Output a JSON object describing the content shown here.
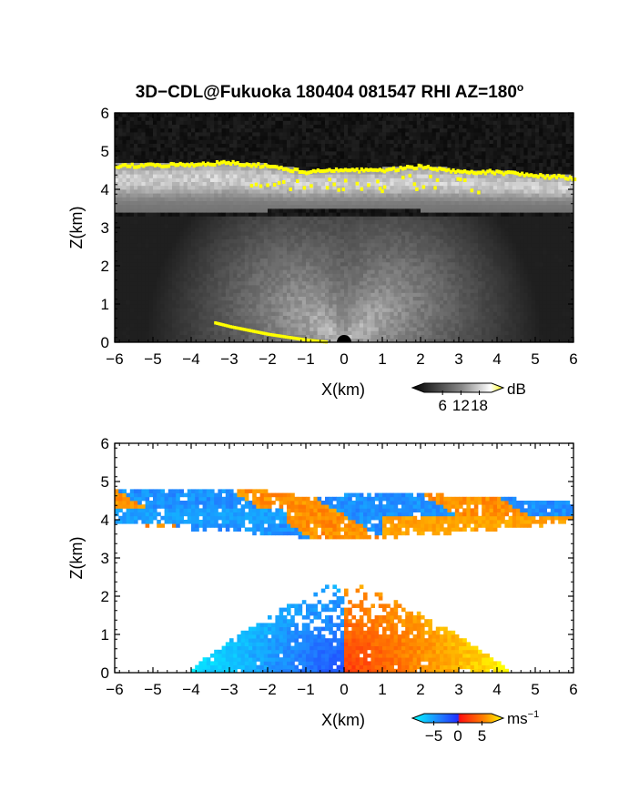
{
  "title": "3D−CDL@Fukuoka 180404 081547 RHI AZ=180",
  "title_superscript": "o",
  "chart_data": [
    {
      "type": "heatmap",
      "name": "backscatter",
      "xlabel": "X(km)",
      "ylabel": "Z(km)",
      "xlim": [
        -6,
        6
      ],
      "ylim": [
        0,
        6
      ],
      "x_ticks": [
        "−6",
        "−5",
        "−4",
        "−3",
        "−2",
        "−1",
        "0",
        "1",
        "2",
        "3",
        "4",
        "5",
        "6"
      ],
      "y_ticks": [
        "0",
        "1",
        "2",
        "3",
        "4",
        "5",
        "6"
      ],
      "colorbar": {
        "unit": "dB",
        "ticks": [
          "6",
          "12",
          "18"
        ],
        "tick_values": [
          6,
          12,
          18
        ],
        "range": [
          0,
          22
        ],
        "colors": [
          "#000000",
          "#ffffff",
          "#ffff00"
        ]
      },
      "features": {
        "layer_top_km": 4.7,
        "layer_bottom_km": 3.5,
        "cloud_top_marker_color": "#ffff00",
        "cloud_top_km": [
          [
            -6,
            4.6
          ],
          [
            -4,
            4.65
          ],
          [
            -3,
            4.7
          ],
          [
            -2,
            4.6
          ],
          [
            -1,
            4.45
          ],
          [
            0,
            4.5
          ],
          [
            1,
            4.5
          ],
          [
            2,
            4.6
          ],
          [
            3,
            4.45
          ],
          [
            4,
            4.45
          ],
          [
            5,
            4.35
          ],
          [
            6,
            4.3
          ]
        ],
        "ground_echo_km": [
          [
            -3.4,
            0.5
          ],
          [
            -3,
            0.4
          ],
          [
            -2,
            0.2
          ],
          [
            -1,
            0.05
          ],
          [
            -0.5,
            0
          ]
        ],
        "radar_x_km": 0
      },
      "grid": false
    },
    {
      "type": "heatmap",
      "name": "radial_velocity",
      "xlabel": "X(km)",
      "ylabel": "Z(km)",
      "xlim": [
        -6,
        6
      ],
      "ylim": [
        0,
        6
      ],
      "x_ticks": [
        "−6",
        "−5",
        "−4",
        "−3",
        "−2",
        "−1",
        "0",
        "1",
        "2",
        "3",
        "4",
        "5",
        "6"
      ],
      "y_ticks": [
        "0",
        "1",
        "2",
        "3",
        "4",
        "5",
        "6"
      ],
      "colorbar": {
        "unit": "ms",
        "unit_superscript": "−1",
        "ticks": [
          "−5",
          "0",
          "5"
        ],
        "tick_values": [
          -5,
          0,
          5
        ],
        "range": [
          -7,
          7
        ],
        "colors": [
          "#00ffff",
          "#0050ff",
          "#ff0000",
          "#ffa000",
          "#ffff00"
        ]
      },
      "features": {
        "negative_side_color": "#1f6fe8",
        "positive_side_color": "#ff3010",
        "upper_layer_km": [
          3.5,
          4.8
        ],
        "lower_plume_top_km": 2.3
      },
      "grid": false
    }
  ]
}
